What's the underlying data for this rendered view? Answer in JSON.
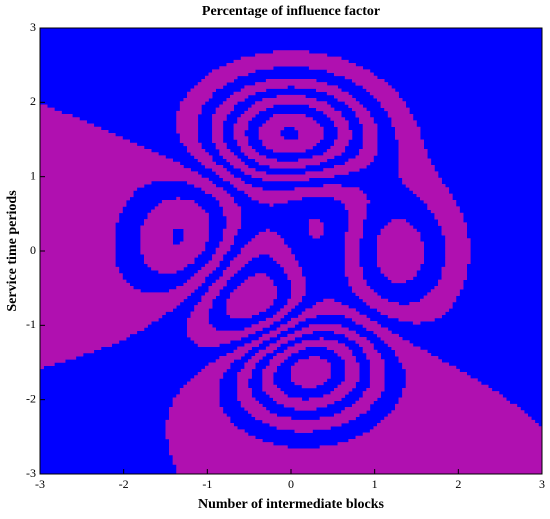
{
  "chart_data": {
    "type": "contour",
    "title": "Percentage of influence factor",
    "x_label": "Number of intermediate blocks",
    "y_label": "Service time periods",
    "xlim": [
      -3,
      3
    ],
    "ylim": [
      -3,
      3
    ],
    "xticks": [
      -3,
      -2,
      -1,
      0,
      1,
      2,
      3
    ],
    "yticks": [
      -3,
      -2,
      -1,
      0,
      1,
      2,
      3
    ],
    "colors": [
      "#0000ff",
      "#b010b0"
    ]
  }
}
